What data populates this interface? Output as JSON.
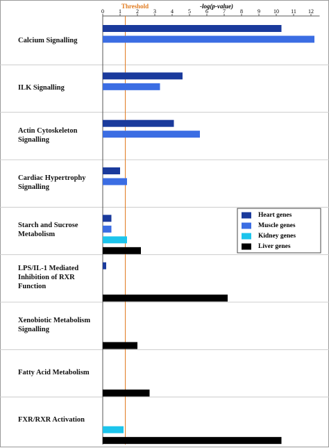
{
  "chart_data": {
    "type": "bar",
    "orientation": "horizontal",
    "x_label": "-log(p-value)",
    "threshold": 1.3,
    "threshold_label": "Threshold",
    "threshold_color": "#e07b20",
    "categories": [
      "Calcium Signalling",
      "ILK Signalling",
      "Actin Cytoskeleton Signalling",
      "Cardiac Hypertrophy Signalling",
      "Starch and Sucrose Metabolism",
      "LPS/IL-1 Mediated Inhibition of RXR Function",
      "Xenobiotic Metabolism Signalling",
      "Fatty Acid Metabolism",
      "FXR/RXR Activation"
    ],
    "series": [
      {
        "name": "Heart genes",
        "color": "#1a3a9c",
        "values": [
          10.3,
          4.6,
          4.1,
          1.0,
          0.5,
          0.2,
          null,
          null,
          null
        ]
      },
      {
        "name": "Muscle genes",
        "color": "#3b6de3",
        "values": [
          12.2,
          3.3,
          5.6,
          1.4,
          0.5,
          null,
          null,
          null,
          null
        ]
      },
      {
        "name": "Kidney genes",
        "color": "#1cc4ec",
        "values": [
          null,
          null,
          null,
          null,
          1.4,
          null,
          null,
          null,
          1.2
        ]
      },
      {
        "name": "Liver genes",
        "color": "#000000",
        "values": [
          null,
          null,
          null,
          null,
          2.2,
          7.2,
          2.0,
          2.7,
          10.3
        ]
      }
    ],
    "xlim": [
      0,
      12.5
    ],
    "xticks": [
      0,
      1,
      2,
      3,
      4,
      5,
      6,
      7,
      8,
      9,
      10,
      11,
      12
    ],
    "legend": "right"
  }
}
